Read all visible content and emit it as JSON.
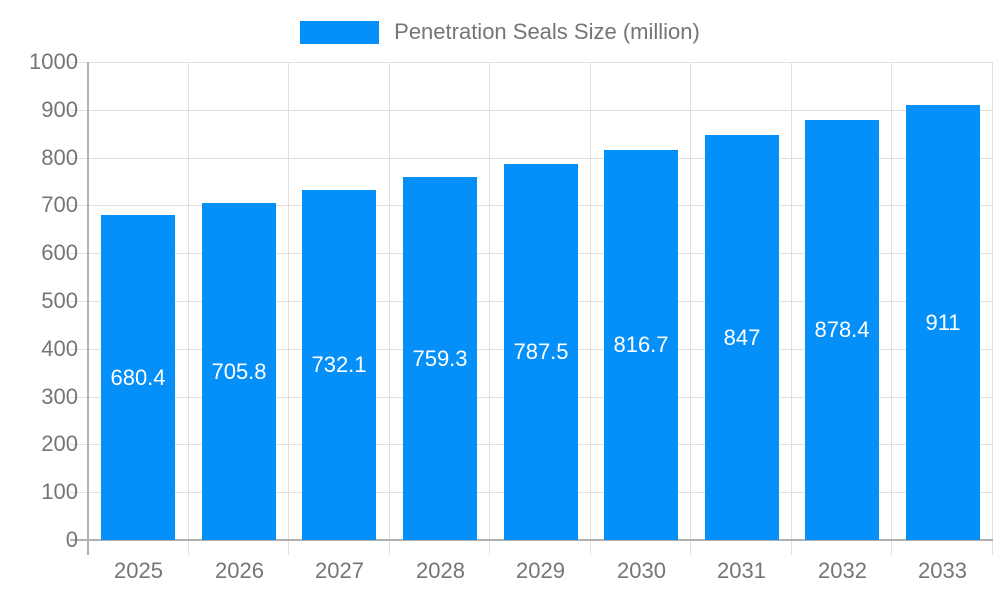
{
  "legend": {
    "label": "Penetration Seals Size (million)"
  },
  "chart_data": {
    "type": "bar",
    "title": "",
    "xlabel": "",
    "ylabel": "",
    "categories": [
      "2025",
      "2026",
      "2027",
      "2028",
      "2029",
      "2030",
      "2031",
      "2032",
      "2033"
    ],
    "series": [
      {
        "name": "Penetration Seals Size (million)",
        "values": [
          680.4,
          705.8,
          732.1,
          759.3,
          787.5,
          816.7,
          847,
          878.4,
          911
        ]
      }
    ],
    "value_labels": [
      "680.4",
      "705.8",
      "732.1",
      "759.3",
      "787.5",
      "816.7",
      "847",
      "878.4",
      "911"
    ],
    "ylim": [
      0,
      1000
    ],
    "ytick_step": 100,
    "grid": true,
    "legend_position": "top",
    "colors": {
      "bar": "#0490f8",
      "grid": "#e0e0e0",
      "axis": "#b0b0b0",
      "axis_text": "#757575",
      "value_text": "#ffffff"
    }
  }
}
